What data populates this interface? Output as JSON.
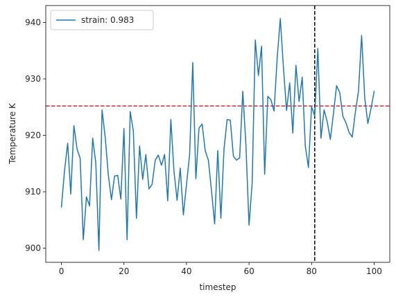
{
  "chart_data": {
    "type": "line",
    "title": "",
    "xlabel": "timestep",
    "ylabel": "Temperature K",
    "xlim": [
      -5,
      105
    ],
    "ylim": [
      897.5,
      943
    ],
    "xticks": [
      0,
      20,
      40,
      60,
      80,
      100
    ],
    "yticks": [
      900,
      910,
      920,
      930,
      940
    ],
    "grid": false,
    "legend_position": "top-left",
    "series": [
      {
        "name": "strain: 0.983",
        "color": "#1f77b4",
        "x": [
          0,
          1,
          2,
          3,
          4,
          5,
          6,
          7,
          8,
          9,
          10,
          11,
          12,
          13,
          14,
          15,
          16,
          17,
          18,
          19,
          20,
          21,
          22,
          23,
          24,
          25,
          26,
          27,
          28,
          29,
          30,
          31,
          32,
          33,
          34,
          35,
          36,
          37,
          38,
          39,
          40,
          41,
          42,
          43,
          44,
          45,
          46,
          47,
          48,
          49,
          50,
          51,
          52,
          53,
          54,
          55,
          56,
          57,
          58,
          59,
          60,
          61,
          62,
          63,
          64,
          65,
          66,
          67,
          68,
          69,
          70,
          71,
          72,
          73,
          74,
          75,
          76,
          77,
          78,
          79,
          80,
          81,
          82,
          83,
          84,
          85,
          86,
          87,
          88,
          89,
          90,
          91,
          92,
          93,
          94,
          95,
          96,
          97,
          98,
          99,
          100
        ],
        "y": [
          907.3,
          913.7,
          918.6,
          909.6,
          921.7,
          917.6,
          915.9,
          901.5,
          909.1,
          907.5,
          919.5,
          915.1,
          899.6,
          924.5,
          919.7,
          913.0,
          908.6,
          912.8,
          912.9,
          908.7,
          921.2,
          901.5,
          924.2,
          920.8,
          905.3,
          918.1,
          912.2,
          916.6,
          910.5,
          911.3,
          915.6,
          916.5,
          914.7,
          916.6,
          908.4,
          922.8,
          913.6,
          908.5,
          914.2,
          905.9,
          911.3,
          916.6,
          932.9,
          912.3,
          921.3,
          922.0,
          917.2,
          915.6,
          910.2,
          904.3,
          917.3,
          905.3,
          917.6,
          922.8,
          922.7,
          916.3,
          915.6,
          916.0,
          927.8,
          918.4,
          904.1,
          911.5,
          936.9,
          930.6,
          935.8,
          913.1,
          926.9,
          926.3,
          924.3,
          933.7,
          940.7,
          932.0,
          924.4,
          929.3,
          920.4,
          932.4,
          926.0,
          930.3,
          918.1,
          914.3,
          925.1,
          923.4,
          935.4,
          919.5,
          924.5,
          922.4,
          919.3,
          923.9,
          928.8,
          927.6,
          923.4,
          922.2,
          920.5,
          919.7,
          924.1,
          927.8,
          937.7,
          926.6,
          922.1,
          924.7,
          927.8
        ]
      }
    ],
    "reference_lines": [
      {
        "orientation": "horizontal",
        "value": 925.2,
        "color": "#d62728",
        "style": "dashed"
      },
      {
        "orientation": "vertical",
        "value": 81,
        "color": "#000000",
        "style": "dashed"
      }
    ]
  }
}
